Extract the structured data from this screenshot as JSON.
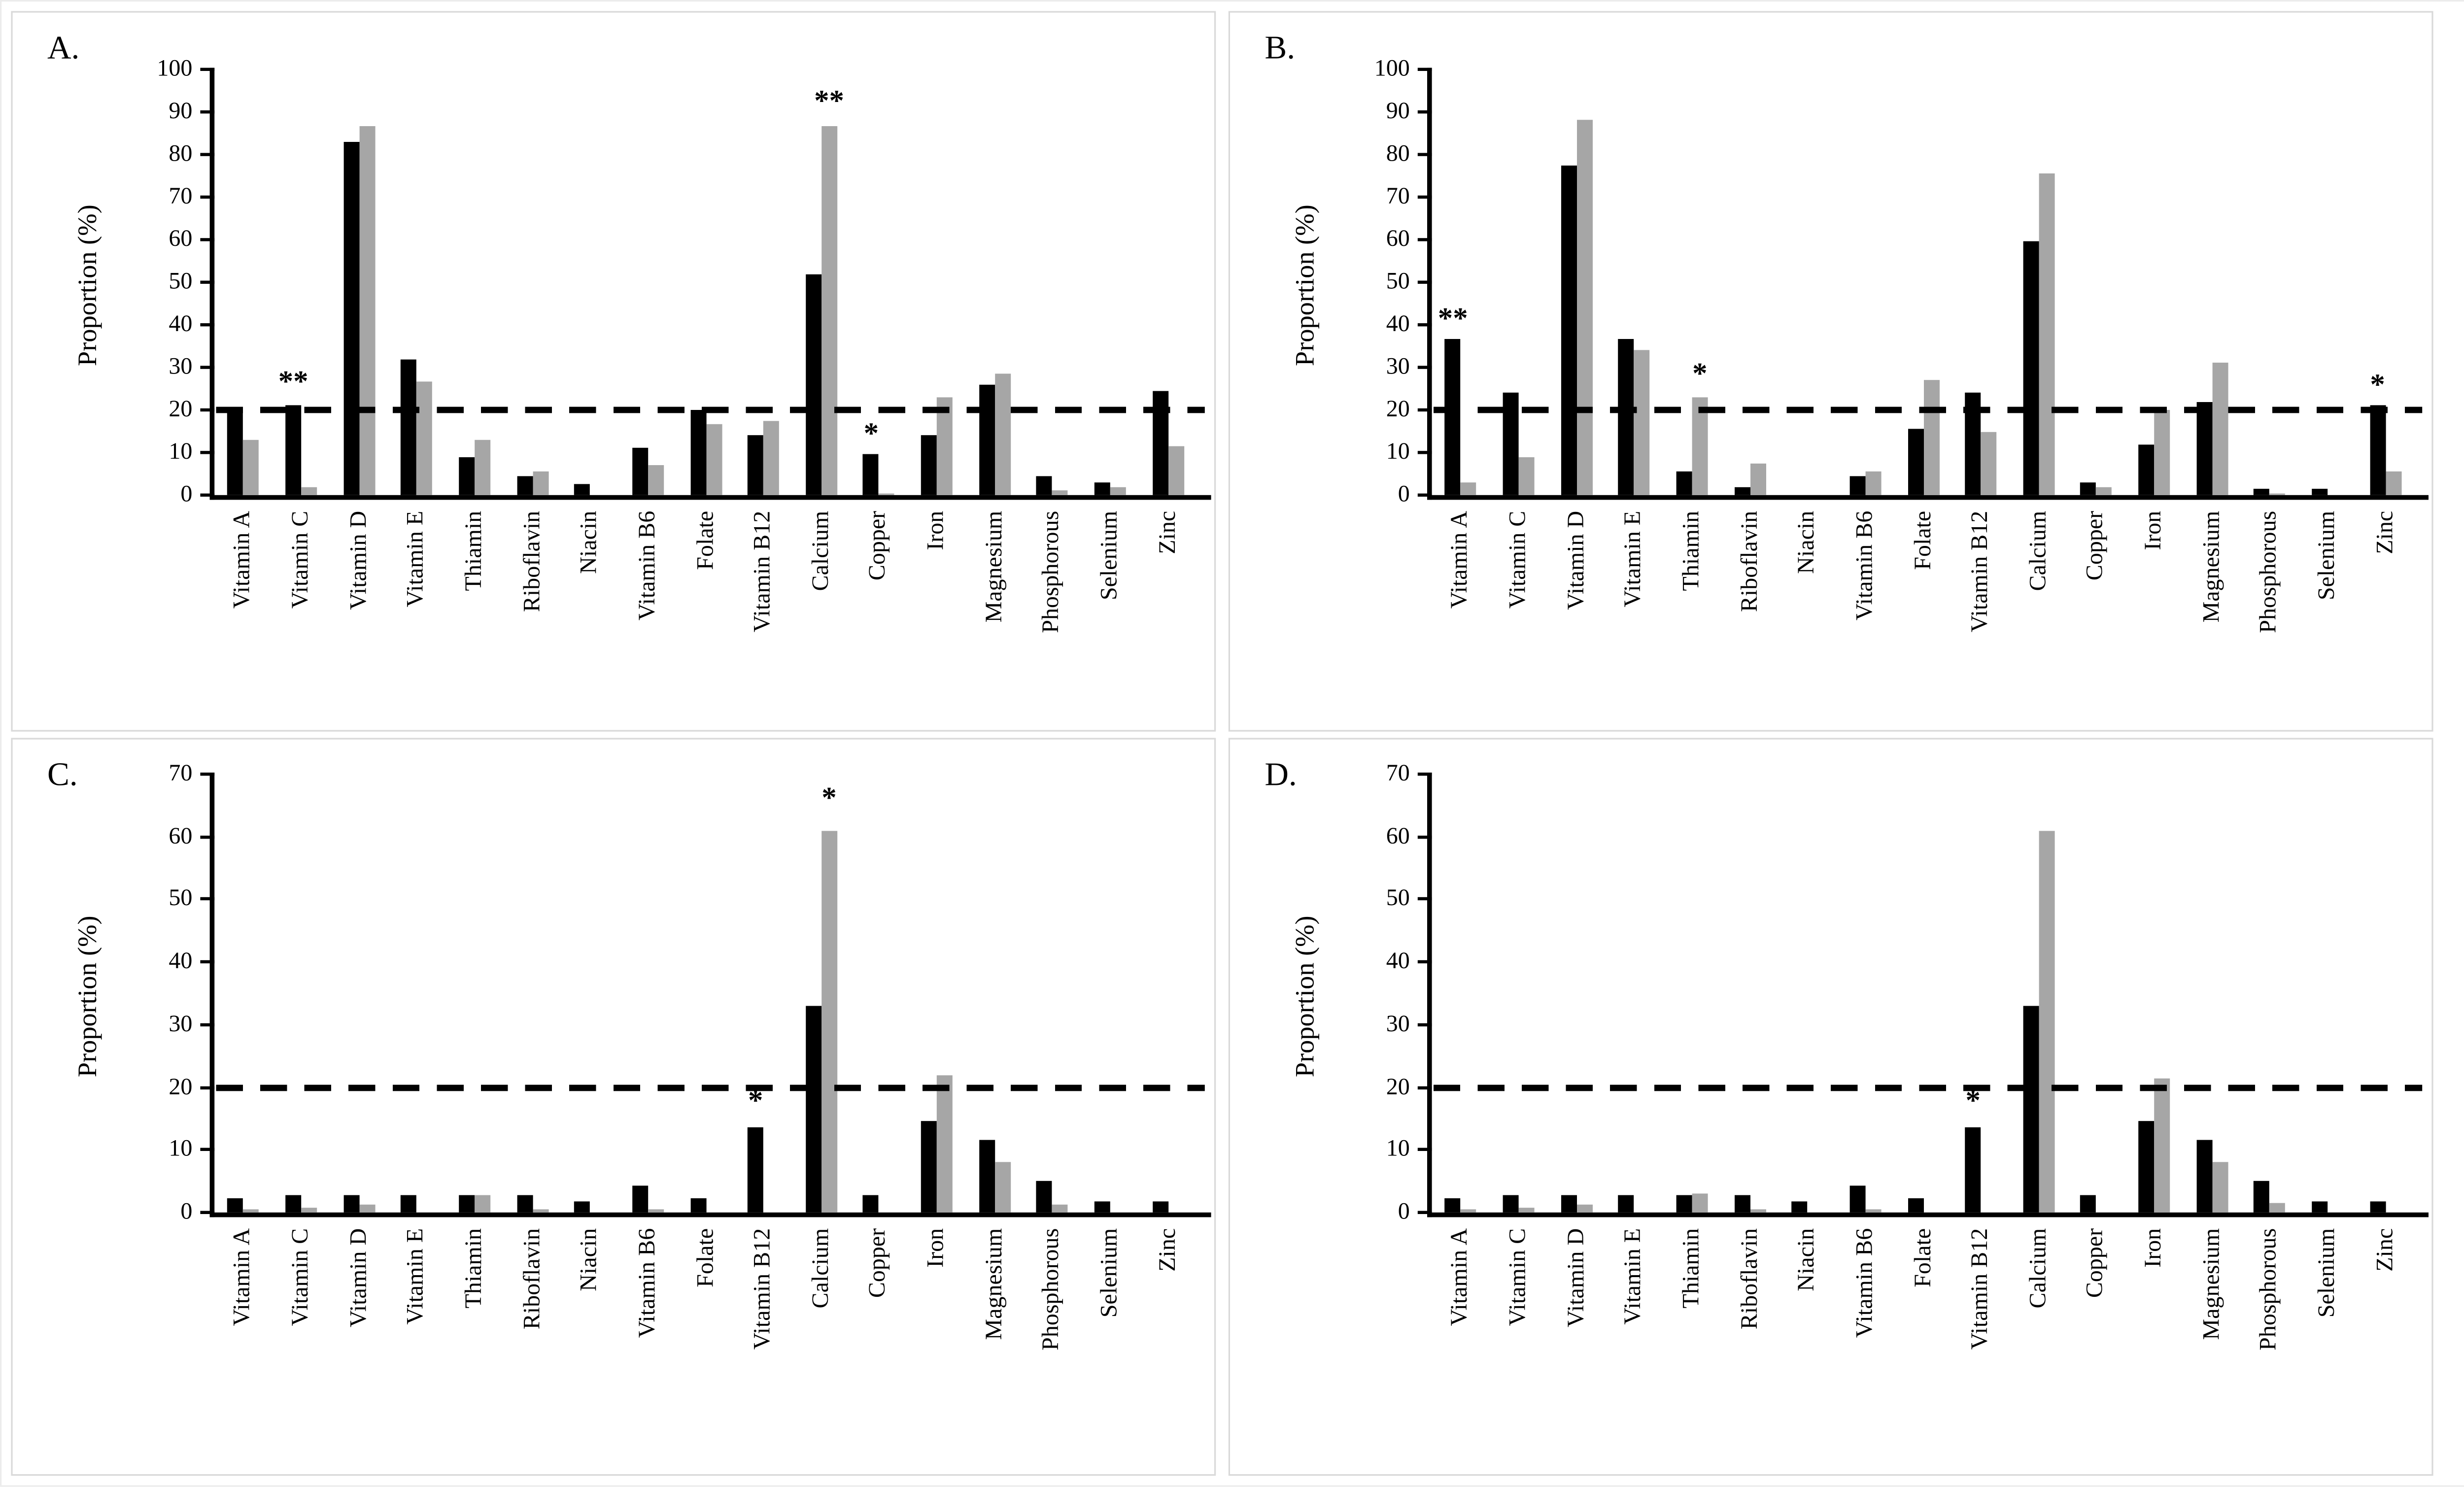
{
  "figure": {
    "background": "#ffffff",
    "border_color": "#d9d9d9",
    "series_style": {
      "black": "#000000",
      "gray": "#a6a6a6"
    },
    "reference_line_y": 20,
    "y_axis_label": "Proportion (%)"
  },
  "chart_data": [
    {
      "id": "A",
      "type": "bar",
      "panel_label": "A.",
      "ylabel": "Proportion (%)",
      "ylim": [
        0,
        100
      ],
      "ytick_step": 10,
      "grid": false,
      "legend": "none",
      "reference_line": {
        "y": 20,
        "style": "dashed"
      },
      "categories": [
        "Vitamin A",
        "Vitamin C",
        "Vitamin D",
        "Vitamin E",
        "Thiamin",
        "Riboflavin",
        "Niacin",
        "Vitamin B6",
        "Folate",
        "Vitamin B12",
        "Calcium",
        "Copper",
        "Iron",
        "Magnesium",
        "Phosphorous",
        "Selenium",
        "Zinc"
      ],
      "series": [
        {
          "name": "black",
          "color": "#000000",
          "values": [
            20,
            21,
            83,
            32,
            9,
            4.5,
            2.5,
            11,
            20,
            14,
            52,
            9.5,
            14,
            26,
            4.5,
            3,
            24.5
          ]
        },
        {
          "name": "gray",
          "color": "#a6a6a6",
          "values": [
            13,
            2,
            86.5,
            26.5,
            13,
            5.5,
            0,
            7,
            16.5,
            17.5,
            86.5,
            0.5,
            23,
            28.5,
            1,
            2,
            11.5
          ]
        }
      ],
      "annotations": [
        {
          "text": "**",
          "category": "Vitamin C",
          "series": "black",
          "y": 24
        },
        {
          "text": "**",
          "category": "Calcium",
          "series": "gray",
          "y": 90
        },
        {
          "text": "*",
          "category": "Copper",
          "series": "black",
          "y": 12
        }
      ]
    },
    {
      "id": "B",
      "type": "bar",
      "panel_label": "B.",
      "ylabel": "Proportion (%)",
      "ylim": [
        0,
        100
      ],
      "ytick_step": 10,
      "grid": false,
      "legend": "none",
      "reference_line": {
        "y": 20,
        "style": "dashed"
      },
      "categories": [
        "Vitamin A",
        "Vitamin C",
        "Vitamin D",
        "Vitamin E",
        "Thiamin",
        "Riboflavin",
        "Niacin",
        "Vitamin B6",
        "Folate",
        "Vitamin B12",
        "Calcium",
        "Copper",
        "Iron",
        "Magnesium",
        "Phosphorous",
        "Selenium",
        "Zinc"
      ],
      "series": [
        {
          "name": "black",
          "color": "#000000",
          "values": [
            36.5,
            24,
            77.5,
            36.5,
            5.5,
            2,
            0,
            4.5,
            15.5,
            24,
            59.5,
            3,
            12,
            22,
            1.5,
            1.5,
            21
          ]
        },
        {
          "name": "gray",
          "color": "#a6a6a6",
          "values": [
            3,
            9,
            88,
            34,
            23,
            7.5,
            0,
            5.5,
            27,
            15,
            75.5,
            2,
            20,
            31,
            0.5,
            0,
            5.5
          ]
        }
      ],
      "annotations": [
        {
          "text": "**",
          "category": "Vitamin A",
          "series": "black",
          "y": 39
        },
        {
          "text": "*",
          "category": "Thiamin",
          "series": "gray",
          "y": 26
        },
        {
          "text": "*",
          "category": "Zinc",
          "series": "black",
          "y": 23.5
        }
      ]
    },
    {
      "id": "C",
      "type": "bar",
      "panel_label": "C.",
      "ylabel": "Proportion (%)",
      "ylim": [
        0,
        70
      ],
      "ytick_step": 10,
      "grid": false,
      "legend": "none",
      "reference_line": {
        "y": 20,
        "style": "dashed"
      },
      "categories": [
        "Vitamin A",
        "Vitamin C",
        "Vitamin D",
        "Vitamin E",
        "Thiamin",
        "Riboflavin",
        "Niacin",
        "Vitamin B6",
        "Folate",
        "Vitamin B12",
        "Calcium",
        "Copper",
        "Iron",
        "Magnesium",
        "Phosphorous",
        "Selenium",
        "Zinc"
      ],
      "series": [
        {
          "name": "black",
          "color": "#000000",
          "values": [
            2.2,
            2.7,
            2.7,
            2.7,
            2.7,
            2.7,
            1.7,
            4.3,
            2.3,
            13.5,
            33,
            2.8,
            14.5,
            11.5,
            5,
            1.8,
            1.8
          ]
        },
        {
          "name": "gray",
          "color": "#a6a6a6",
          "values": [
            0.5,
            0.7,
            1.3,
            0,
            2.7,
            0.5,
            0,
            0.5,
            0,
            0,
            61,
            0,
            22,
            8,
            1.2,
            0,
            0
          ]
        }
      ],
      "annotations": [
        {
          "text": "*",
          "category": "Vitamin B12",
          "series": "black",
          "y": 16
        },
        {
          "text": "*",
          "category": "Calcium",
          "series": "gray",
          "y": 64.5
        }
      ]
    },
    {
      "id": "D",
      "type": "bar",
      "panel_label": "D.",
      "ylabel": "Proportion (%)",
      "ylim": [
        0,
        70
      ],
      "ytick_step": 10,
      "grid": false,
      "legend": "none",
      "reference_line": {
        "y": 20,
        "style": "dashed"
      },
      "categories": [
        "Vitamin A",
        "Vitamin C",
        "Vitamin D",
        "Vitamin E",
        "Thiamin",
        "Riboflavin",
        "Niacin",
        "Vitamin B6",
        "Folate",
        "Vitamin B12",
        "Calcium",
        "Copper",
        "Iron",
        "Magnesium",
        "Phosphorous",
        "Selenium",
        "Zinc"
      ],
      "series": [
        {
          "name": "black",
          "color": "#000000",
          "values": [
            2.2,
            2.7,
            2.7,
            2.7,
            2.7,
            2.7,
            1.7,
            4.3,
            2.3,
            13.5,
            33,
            2.8,
            14.5,
            11.7,
            5,
            1.8,
            1.8
          ]
        },
        {
          "name": "gray",
          "color": "#a6a6a6",
          "values": [
            0.5,
            0.7,
            1.3,
            0,
            2.9,
            0.5,
            0,
            0.5,
            0,
            0,
            61,
            0,
            21.5,
            8,
            1.5,
            0,
            0
          ]
        }
      ],
      "annotations": [
        {
          "text": "*",
          "category": "Vitamin B12",
          "series": "black",
          "y": 16
        }
      ]
    }
  ]
}
